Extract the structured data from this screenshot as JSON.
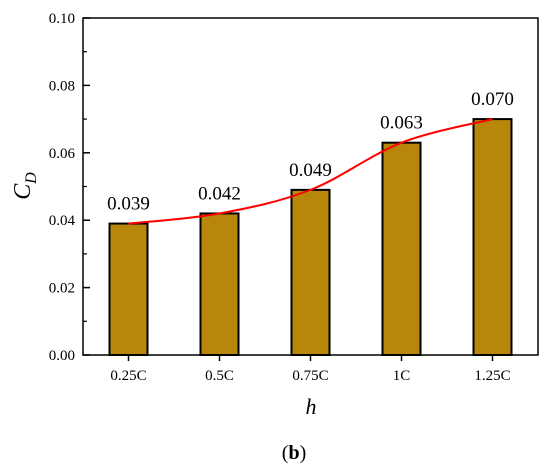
{
  "chart_data": {
    "type": "bar",
    "categories": [
      "0.25C",
      "0.5C",
      "0.75C",
      "1C",
      "1.25C"
    ],
    "values": [
      0.039,
      0.042,
      0.049,
      0.063,
      0.07
    ],
    "data_labels": [
      "0.039",
      "0.042",
      "0.049",
      "0.063",
      "0.070"
    ],
    "overlay_line": {
      "values": [
        0.039,
        0.042,
        0.049,
        0.063,
        0.07
      ],
      "smooth": true,
      "color": "#ff0000"
    },
    "xlabel": "h",
    "ylabel": {
      "main": "C",
      "sub": "D"
    },
    "ylim": [
      0,
      0.1
    ],
    "yticks": [
      "0.00",
      "0.02",
      "0.04",
      "0.06",
      "0.08",
      "0.10"
    ],
    "bar_color": "#b8860b",
    "bar_edge_color": "#000000",
    "grid": false,
    "panel_label": {
      "open": "(",
      "letter": "b",
      "close": ")"
    }
  }
}
